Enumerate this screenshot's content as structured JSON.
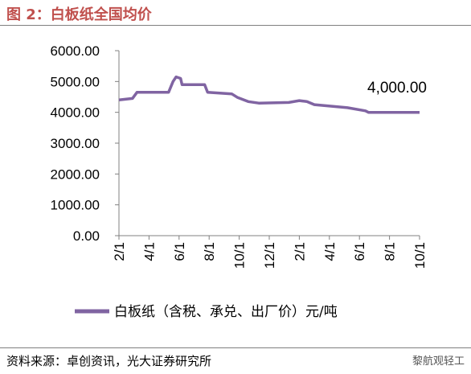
{
  "header": {
    "title": "图 2：白板纸全国均价"
  },
  "footer": {
    "source": "资料来源：卓创资讯，光大证券研究所",
    "watermark": "黎航观轻工"
  },
  "chart_data": {
    "type": "line",
    "ylim": [
      0,
      6000
    ],
    "yticks": [
      "0.00",
      "1000.00",
      "2000.00",
      "3000.00",
      "4000.00",
      "5000.00",
      "6000.00"
    ],
    "xticks": [
      "2/1",
      "4/1",
      "6/1",
      "8/1",
      "10/1",
      "12/1",
      "2/1",
      "4/1",
      "6/1",
      "8/1",
      "10/1"
    ],
    "xlim": [
      0,
      20
    ],
    "annotation": "4,000.00",
    "legend_position": "bottom",
    "grid": false,
    "series": [
      {
        "name": "白板纸（含税、承兑、出厂价）元/吨",
        "color": "#8064a2",
        "points": [
          [
            0.0,
            4400
          ],
          [
            0.9,
            4450
          ],
          [
            1.2,
            4650
          ],
          [
            3.3,
            4650
          ],
          [
            3.6,
            5000
          ],
          [
            3.8,
            5150
          ],
          [
            4.1,
            5100
          ],
          [
            4.2,
            4900
          ],
          [
            5.7,
            4900
          ],
          [
            5.9,
            4650
          ],
          [
            7.5,
            4600
          ],
          [
            7.9,
            4480
          ],
          [
            8.6,
            4350
          ],
          [
            9.3,
            4300
          ],
          [
            11.3,
            4320
          ],
          [
            12.0,
            4380
          ],
          [
            12.5,
            4350
          ],
          [
            13.0,
            4250
          ],
          [
            15.2,
            4150
          ],
          [
            16.4,
            4050
          ],
          [
            16.6,
            4000
          ],
          [
            20.0,
            4000
          ]
        ]
      }
    ]
  }
}
